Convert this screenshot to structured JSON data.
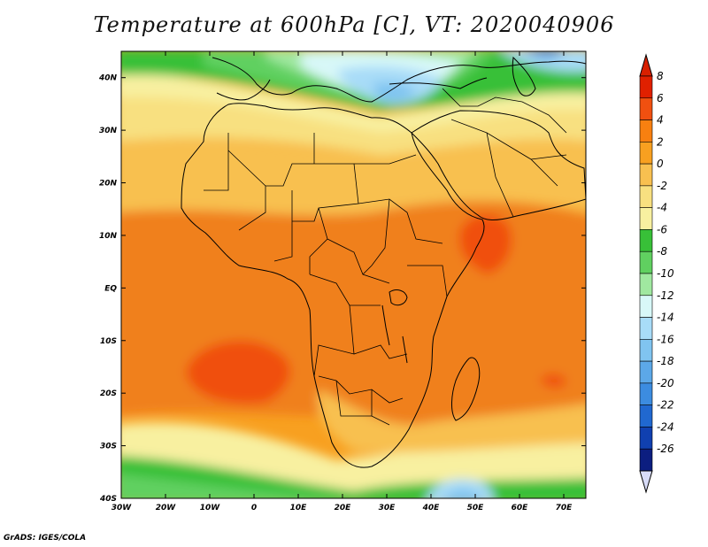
{
  "title": "Temperature at 600hPa [C], VT: 2020040906",
  "credit": "GrADS: IGES/COLA",
  "map": {
    "lat_range": [
      -40,
      45
    ],
    "lon_range": [
      -30,
      75
    ],
    "lat_ticks": [
      {
        "value": 40,
        "label": "40N"
      },
      {
        "value": 30,
        "label": "30N"
      },
      {
        "value": 20,
        "label": "20N"
      },
      {
        "value": 10,
        "label": "10N"
      },
      {
        "value": 0,
        "label": "EQ"
      },
      {
        "value": -10,
        "label": "10S"
      },
      {
        "value": -20,
        "label": "20S"
      },
      {
        "value": -30,
        "label": "30S"
      },
      {
        "value": -40,
        "label": "40S"
      }
    ],
    "lon_ticks": [
      {
        "value": -30,
        "label": "30W"
      },
      {
        "value": -20,
        "label": "20W"
      },
      {
        "value": -10,
        "label": "10W"
      },
      {
        "value": 0,
        "label": "0"
      },
      {
        "value": 10,
        "label": "10E"
      },
      {
        "value": 20,
        "label": "20E"
      },
      {
        "value": 30,
        "label": "30E"
      },
      {
        "value": 40,
        "label": "40E"
      },
      {
        "value": 50,
        "label": "50E"
      },
      {
        "value": 60,
        "label": "60E"
      },
      {
        "value": 70,
        "label": "70E"
      }
    ]
  },
  "colorbar": {
    "labels": [
      "8",
      "6",
      "4",
      "2",
      "0",
      "-2",
      "-4",
      "-6",
      "-8",
      "-10",
      "-12",
      "-14",
      "-16",
      "-18",
      "-20",
      "-22",
      "-24",
      "-26"
    ],
    "colors": [
      "#e02000",
      "#f05010",
      "#f88010",
      "#f8a020",
      "#f8c050",
      "#f8e080",
      "#f8f0a0",
      "#38c038",
      "#60d060",
      "#a0e8a0",
      "#d8f8f8",
      "#a8dcf8",
      "#80c4f0",
      "#5ca8e8",
      "#3c8ce0",
      "#2068d0",
      "#1040b0",
      "#0c1e80"
    ],
    "top_color": "#d82000",
    "bottom_color": "#d8dcf8"
  },
  "field_colors": {
    "t4": "#f0801c",
    "t2": "#f8a020",
    "t0": "#f8c050",
    "tm2": "#f8e080",
    "tm4": "#f8f0a0",
    "tm6": "#38c038",
    "tm8": "#60d060",
    "tm10": "#a0e8a0",
    "tm12": "#d8f8f8",
    "tm14": "#a8dcf8",
    "tm16": "#80c4f0",
    "tm20": "#3c8ce0",
    "land_border": "#000000"
  }
}
